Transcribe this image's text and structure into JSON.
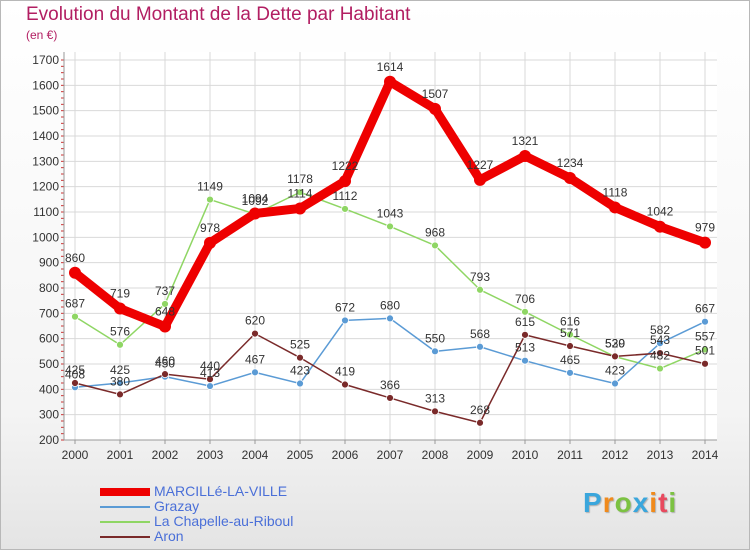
{
  "header": {
    "title": "Evolution du Montant de la Dette par Habitant",
    "subtitle": "(en €)"
  },
  "logo": {
    "text": "Proxiti",
    "letters": [
      "P",
      "r",
      "o",
      "x",
      "i",
      "t",
      "i"
    ],
    "colors": [
      "#3aa6dc",
      "#f08a1c",
      "#7cc242",
      "#3aa6dc",
      "#f08a1c",
      "#e84a5f",
      "#7cc242"
    ]
  },
  "chart_data": {
    "type": "line",
    "title": "Evolution du Montant de la Dette par Habitant",
    "subtitle": "(en €)",
    "x": [
      "2000",
      "2001",
      "2002",
      "2003",
      "2004",
      "2005",
      "2006",
      "2007",
      "2008",
      "2009",
      "2010",
      "2011",
      "2012",
      "2013",
      "2014"
    ],
    "ylim": [
      200,
      1700
    ],
    "yticks": [
      200,
      300,
      400,
      500,
      600,
      700,
      800,
      900,
      1000,
      1100,
      1200,
      1300,
      1400,
      1500,
      1600,
      1700
    ],
    "grid": true,
    "legend_position": "bottom-left",
    "series": [
      {
        "name": "MARCILLé-LA-VILLE",
        "color": "#ee0000",
        "values": [
          860,
          719,
          648,
          978,
          1094,
          1114,
          1222,
          1614,
          1507,
          1227,
          1321,
          1234,
          1118,
          1042,
          979
        ],
        "labels": [
          "860",
          "719",
          "648",
          "978",
          "1094",
          "1114",
          "1222",
          "1614",
          "1507",
          "1227",
          "1321",
          "1234",
          "1118",
          "1042",
          "979"
        ]
      },
      {
        "name": "Grazay",
        "color": "#5b9bd5",
        "values": [
          408,
          425,
          450,
          413,
          467,
          423,
          672,
          680,
          550,
          568,
          513,
          465,
          423,
          582,
          667
        ],
        "labels": [
          "408",
          "425",
          "450",
          "413",
          "467",
          "423",
          "672",
          "680",
          "550",
          "568",
          "513",
          "465",
          "423",
          "582",
          "667"
        ]
      },
      {
        "name": "La Chapelle-au-Riboul",
        "color": "#8fd664",
        "values": [
          687,
          576,
          737,
          1149,
          1092,
          1178,
          1112,
          1043,
          968,
          793,
          706,
          616,
          529,
          482,
          557
        ],
        "labels": [
          "687",
          "576",
          "737",
          "1149",
          "1092",
          "1178",
          "1112",
          "1043",
          "968",
          "793",
          "706",
          "616",
          "529",
          "482",
          "557"
        ]
      },
      {
        "name": "Aron",
        "color": "#7a2a2a",
        "values": [
          425,
          380,
          460,
          440,
          620,
          525,
          419,
          366,
          313,
          268,
          615,
          571,
          530,
          543,
          501
        ],
        "labels": [
          "425",
          "380",
          "460",
          "440",
          "620",
          "525",
          "419",
          "366",
          "313",
          "268",
          "615",
          "571",
          "530",
          "543",
          "501"
        ]
      }
    ]
  }
}
